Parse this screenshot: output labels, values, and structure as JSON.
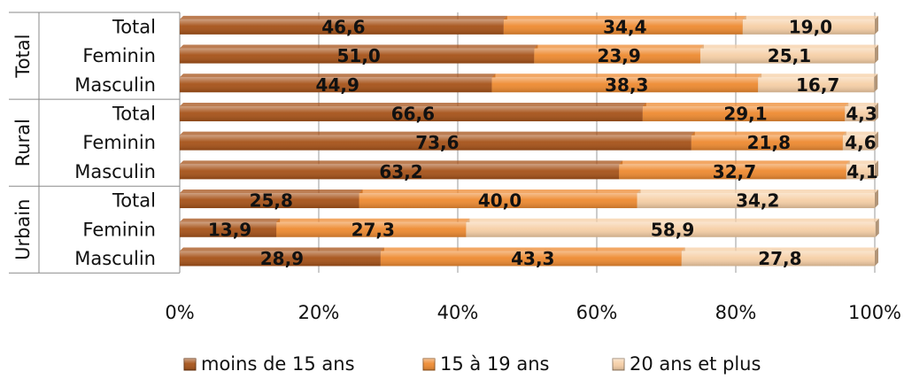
{
  "chart_data": {
    "type": "bar",
    "orientation": "horizontal",
    "stacked": "percent",
    "groups": [
      {
        "name": "Total",
        "categories": [
          "Total",
          "Feminin",
          "Masculin"
        ]
      },
      {
        "name": "Rural",
        "categories": [
          "Total",
          "Feminin",
          "Masculin"
        ]
      },
      {
        "name": "Urbain",
        "categories": [
          "Total",
          "Feminin",
          "Masculin"
        ]
      }
    ],
    "series": [
      {
        "name": "moins de 15 ans",
        "color": "#a65218",
        "values": [
          46.6,
          51.0,
          44.9,
          66.6,
          73.6,
          63.2,
          25.8,
          13.9,
          28.9
        ],
        "labels": [
          "46,6",
          "51,0",
          "44,9",
          "66,6",
          "73,6",
          "63,2",
          "25,8",
          "13,9",
          "28,9"
        ]
      },
      {
        "name": "15 à 19 ans",
        "color": "#ee8a30",
        "values": [
          34.4,
          23.9,
          38.3,
          29.1,
          21.8,
          32.7,
          40.0,
          27.3,
          43.3
        ],
        "labels": [
          "34,4",
          "23,9",
          "38,3",
          "29,1",
          "21,8",
          "32,7",
          "40,0",
          "27,3",
          "43,3"
        ]
      },
      {
        "name": "20 ans et plus",
        "color": "#f6cfa6",
        "values": [
          19.0,
          25.1,
          16.7,
          4.3,
          4.6,
          4.1,
          34.2,
          58.9,
          27.8
        ],
        "labels": [
          "19,0",
          "25,1",
          "16,7",
          "4,3",
          "4,6",
          "4,1",
          "34,2",
          "58,9",
          "27,8"
        ]
      }
    ],
    "x_ticks": [
      "0%",
      "20%",
      "40%",
      "60%",
      "80%",
      "100%"
    ],
    "xlim": [
      0,
      100
    ],
    "legend_position": "bottom",
    "grid": true
  }
}
